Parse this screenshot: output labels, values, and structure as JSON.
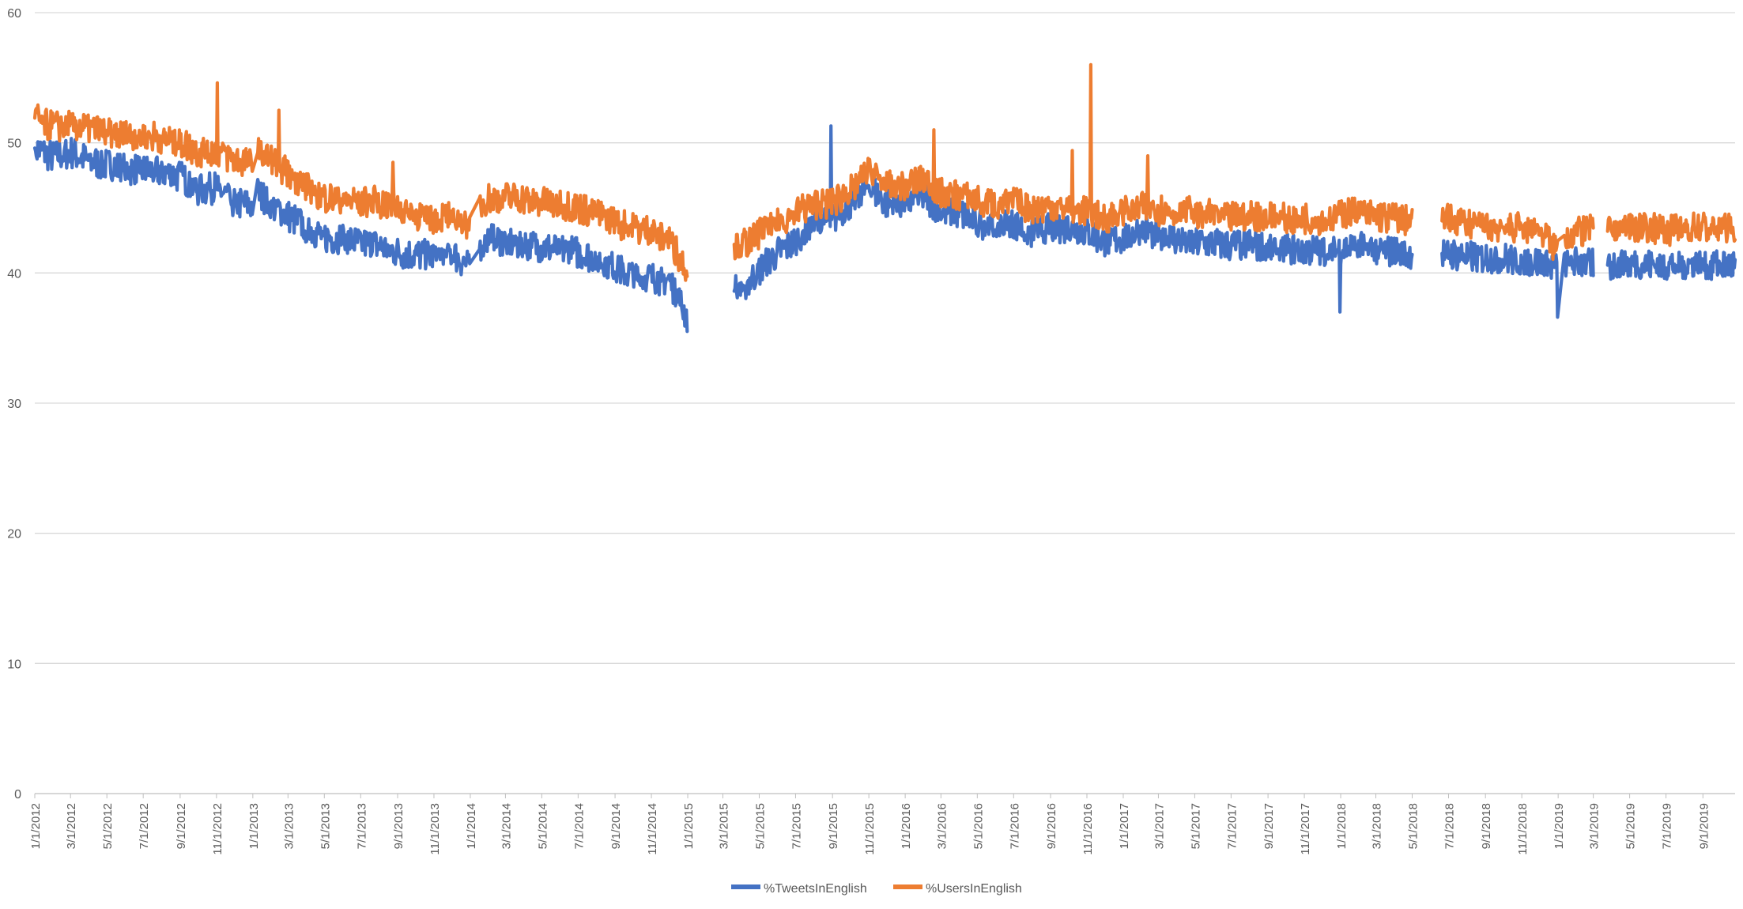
{
  "chart_data": {
    "type": "line",
    "title": "",
    "xlabel": "",
    "ylabel": "",
    "ylim": [
      0,
      60
    ],
    "yticks": [
      0,
      10,
      20,
      30,
      40,
      50,
      60
    ],
    "xlim": [
      "2012-01-01",
      "2019-10-25"
    ],
    "grid": "horizontal",
    "legend": "bottom-center",
    "x_tick_labels": [
      "1/1/2012",
      "3/1/2012",
      "5/1/2012",
      "7/1/2012",
      "9/1/2012",
      "11/1/2012",
      "1/1/2013",
      "3/1/2013",
      "5/1/2013",
      "7/1/2013",
      "9/1/2013",
      "11/1/2013",
      "1/1/2014",
      "3/1/2014",
      "5/1/2014",
      "7/1/2014",
      "9/1/2014",
      "11/1/2014",
      "1/1/2015",
      "3/1/2015",
      "5/1/2015",
      "7/1/2015",
      "9/1/2015",
      "11/1/2015",
      "1/1/2016",
      "3/1/2016",
      "5/1/2016",
      "7/1/2016",
      "9/1/2016",
      "11/1/2016",
      "1/1/2017",
      "3/1/2017",
      "5/1/2017",
      "7/1/2017",
      "9/1/2017",
      "11/1/2017",
      "1/1/2018",
      "3/1/2018",
      "5/1/2018",
      "7/1/2018",
      "9/1/2018",
      "11/1/2018",
      "1/1/2019",
      "3/1/2019",
      "5/1/2019",
      "7/1/2019",
      "9/1/2019"
    ],
    "series": [
      {
        "name": "%TweetsInEnglish",
        "color": "#4472C4",
        "points": [
          [
            "2012-01-01",
            49.6
          ],
          [
            "2012-02-01",
            48.9
          ],
          [
            "2012-03-01",
            49.3
          ],
          [
            "2012-04-01",
            48.6
          ],
          [
            "2012-05-01",
            48.3
          ],
          [
            "2012-06-01",
            48.0
          ],
          [
            "2012-07-01",
            47.9
          ],
          [
            "2012-08-01",
            47.8
          ],
          [
            "2012-09-01",
            47.4
          ],
          [
            "2012-10-01",
            46.4
          ],
          [
            "2012-11-01",
            46.6
          ],
          [
            "2012-12-01",
            45.4
          ],
          [
            "2012-12-31",
            45.2
          ],
          [
            "2013-01-08",
            46.2
          ],
          [
            "2013-02-01",
            45.2
          ],
          [
            "2013-03-01",
            44.4
          ],
          [
            "2013-04-01",
            43.5
          ],
          [
            "2013-05-01",
            42.8
          ],
          [
            "2013-06-01",
            42.6
          ],
          [
            "2013-07-01",
            42.3
          ],
          [
            "2013-08-01",
            42.1
          ],
          [
            "2013-09-01",
            41.6
          ],
          [
            "2013-10-01",
            41.4
          ],
          [
            "2013-11-01",
            41.3
          ],
          [
            "2013-12-01",
            41.5
          ],
          [
            "2013-12-31",
            40.5
          ],
          [
            "2014-01-15",
            42.0
          ],
          [
            "2014-02-01",
            42.7
          ],
          [
            "2014-03-01",
            42.4
          ],
          [
            "2014-04-01",
            42.2
          ],
          [
            "2014-05-01",
            42.0
          ],
          [
            "2014-06-01",
            41.8
          ],
          [
            "2014-07-01",
            41.6
          ],
          [
            "2014-08-01",
            41.1
          ],
          [
            "2014-09-01",
            40.4
          ],
          [
            "2014-10-01",
            39.8
          ],
          [
            "2014-11-01",
            39.6
          ],
          [
            "2014-12-01",
            39.5
          ],
          [
            "2014-12-31",
            36.6
          ],
          [
            "2015-03-20",
            38.6
          ],
          [
            "2015-04-15",
            39.4
          ],
          [
            "2015-05-01",
            40.2
          ],
          [
            "2015-06-01",
            41.6
          ],
          [
            "2015-07-01",
            42.4
          ],
          [
            "2015-08-01",
            43.6
          ],
          [
            "2015-09-01",
            44.1
          ],
          [
            "2015-10-01",
            45.4
          ],
          [
            "2015-11-01",
            46.7
          ],
          [
            "2015-12-01",
            45.3
          ],
          [
            "2016-01-01",
            45.4
          ],
          [
            "2016-02-01",
            45.9
          ],
          [
            "2016-03-01",
            44.7
          ],
          [
            "2016-04-01",
            44.6
          ],
          [
            "2016-05-01",
            43.8
          ],
          [
            "2016-06-01",
            43.6
          ],
          [
            "2016-07-01",
            43.7
          ],
          [
            "2016-08-01",
            43.1
          ],
          [
            "2016-09-01",
            43.5
          ],
          [
            "2016-10-01",
            43.5
          ],
          [
            "2016-11-01",
            43.2
          ],
          [
            "2016-12-01",
            42.4
          ],
          [
            "2017-01-01",
            42.7
          ],
          [
            "2017-02-01",
            43.4
          ],
          [
            "2017-03-01",
            42.9
          ],
          [
            "2017-04-01",
            42.6
          ],
          [
            "2017-05-01",
            42.3
          ],
          [
            "2017-06-01",
            42.3
          ],
          [
            "2017-07-01",
            42.1
          ],
          [
            "2017-08-01",
            42.2
          ],
          [
            "2017-09-01",
            42.0
          ],
          [
            "2017-10-01",
            41.9
          ],
          [
            "2017-11-01",
            41.8
          ],
          [
            "2017-12-01",
            41.7
          ],
          [
            "2018-01-01",
            41.8
          ],
          [
            "2018-02-01",
            42.1
          ],
          [
            "2018-03-01",
            41.8
          ],
          [
            "2018-04-01",
            41.6
          ],
          [
            "2018-05-01",
            41.4
          ],
          [
            "2018-06-20",
            41.5
          ],
          [
            "2018-07-01",
            41.5
          ],
          [
            "2018-08-01",
            41.3
          ],
          [
            "2018-09-01",
            41.2
          ],
          [
            "2018-10-01",
            41.1
          ],
          [
            "2018-11-01",
            41.0
          ],
          [
            "2018-12-01",
            40.8
          ],
          [
            "2018-12-31",
            40.3
          ],
          [
            "2019-01-10",
            40.7
          ],
          [
            "2019-02-01",
            40.9
          ],
          [
            "2019-03-01",
            40.7
          ],
          [
            "2019-03-25",
            40.6
          ],
          [
            "2019-04-10",
            40.6
          ],
          [
            "2019-05-01",
            40.7
          ],
          [
            "2019-06-01",
            40.6
          ],
          [
            "2019-07-01",
            40.6
          ],
          [
            "2019-08-01",
            40.7
          ],
          [
            "2019-09-01",
            40.6
          ],
          [
            "2019-10-25",
            40.6
          ]
        ]
      },
      {
        "name": "%UsersInEnglish",
        "color": "#ED7D31",
        "points": [
          [
            "2012-01-01",
            51.9
          ],
          [
            "2012-02-01",
            51.2
          ],
          [
            "2012-03-01",
            51.5
          ],
          [
            "2012-04-01",
            51.0
          ],
          [
            "2012-05-01",
            50.8
          ],
          [
            "2012-06-01",
            50.5
          ],
          [
            "2012-07-01",
            50.6
          ],
          [
            "2012-08-01",
            50.4
          ],
          [
            "2012-09-01",
            50.1
          ],
          [
            "2012-10-01",
            49.3
          ],
          [
            "2012-11-01",
            49.4
          ],
          [
            "2012-12-01",
            48.7
          ],
          [
            "2012-12-31",
            48.6
          ],
          [
            "2013-01-08",
            49.3
          ],
          [
            "2013-02-01",
            48.7
          ],
          [
            "2013-03-01",
            47.7
          ],
          [
            "2013-04-01",
            46.6
          ],
          [
            "2013-05-01",
            45.8
          ],
          [
            "2013-06-01",
            45.6
          ],
          [
            "2013-07-01",
            45.5
          ],
          [
            "2013-08-01",
            45.4
          ],
          [
            "2013-09-01",
            45.1
          ],
          [
            "2013-10-01",
            44.5
          ],
          [
            "2013-11-01",
            44.2
          ],
          [
            "2013-12-01",
            44.4
          ],
          [
            "2013-12-31",
            43.7
          ],
          [
            "2014-01-15",
            45.2
          ],
          [
            "2014-02-01",
            45.7
          ],
          [
            "2014-03-01",
            45.8
          ],
          [
            "2014-04-01",
            45.7
          ],
          [
            "2014-05-01",
            45.5
          ],
          [
            "2014-06-01",
            45.3
          ],
          [
            "2014-07-01",
            45.0
          ],
          [
            "2014-08-01",
            44.6
          ],
          [
            "2014-09-01",
            43.9
          ],
          [
            "2014-10-01",
            43.4
          ],
          [
            "2014-11-01",
            43.2
          ],
          [
            "2014-12-01",
            42.6
          ],
          [
            "2014-12-31",
            40.2
          ],
          [
            "2015-03-20",
            42.2
          ],
          [
            "2015-04-15",
            42.4
          ],
          [
            "2015-05-01",
            43.1
          ],
          [
            "2015-06-01",
            43.8
          ],
          [
            "2015-07-01",
            44.7
          ],
          [
            "2015-08-01",
            45.3
          ],
          [
            "2015-09-01",
            45.4
          ],
          [
            "2015-10-01",
            46.4
          ],
          [
            "2015-11-01",
            47.8
          ],
          [
            "2015-12-01",
            46.7
          ],
          [
            "2016-01-01",
            46.8
          ],
          [
            "2016-02-01",
            47.2
          ],
          [
            "2016-03-01",
            46.2
          ],
          [
            "2016-04-01",
            46.0
          ],
          [
            "2016-05-01",
            45.6
          ],
          [
            "2016-06-01",
            45.3
          ],
          [
            "2016-07-01",
            45.4
          ],
          [
            "2016-08-01",
            44.9
          ],
          [
            "2016-09-01",
            45.1
          ],
          [
            "2016-10-01",
            45.0
          ],
          [
            "2016-11-01",
            44.8
          ],
          [
            "2016-12-01",
            44.2
          ],
          [
            "2017-01-01",
            44.7
          ],
          [
            "2017-02-01",
            45.1
          ],
          [
            "2017-03-01",
            44.9
          ],
          [
            "2017-04-01",
            44.7
          ],
          [
            "2017-05-01",
            44.6
          ],
          [
            "2017-06-01",
            44.6
          ],
          [
            "2017-07-01",
            44.3
          ],
          [
            "2017-08-01",
            44.4
          ],
          [
            "2017-09-01",
            44.3
          ],
          [
            "2017-10-01",
            44.2
          ],
          [
            "2017-11-01",
            44.2
          ],
          [
            "2017-12-01",
            44.1
          ],
          [
            "2018-01-01",
            44.6
          ],
          [
            "2018-02-01",
            44.7
          ],
          [
            "2018-03-01",
            44.4
          ],
          [
            "2018-04-01",
            44.2
          ],
          [
            "2018-05-01",
            43.9
          ],
          [
            "2018-06-20",
            44.0
          ],
          [
            "2018-07-01",
            44.3
          ],
          [
            "2018-08-01",
            43.8
          ],
          [
            "2018-09-01",
            43.6
          ],
          [
            "2018-10-01",
            43.6
          ],
          [
            "2018-11-01",
            43.5
          ],
          [
            "2018-12-01",
            43.4
          ],
          [
            "2018-12-31",
            41.8
          ],
          [
            "2019-01-10",
            42.7
          ],
          [
            "2019-02-01",
            43.2
          ],
          [
            "2019-03-01",
            43.4
          ],
          [
            "2019-03-25",
            43.2
          ],
          [
            "2019-04-10",
            43.5
          ],
          [
            "2019-05-01",
            43.6
          ],
          [
            "2019-06-01",
            43.5
          ],
          [
            "2019-07-01",
            43.4
          ],
          [
            "2019-08-01",
            43.4
          ],
          [
            "2019-09-01",
            43.5
          ],
          [
            "2019-10-25",
            43.5
          ]
        ]
      }
    ],
    "spikes": [
      {
        "series": "%UsersInEnglish",
        "x": "2012-11-02",
        "y": 54.6
      },
      {
        "series": "%UsersInEnglish",
        "x": "2013-02-14",
        "y": 52.5
      },
      {
        "series": "%UsersInEnglish",
        "x": "2013-08-24",
        "y": 48.5
      },
      {
        "series": "%UsersInEnglish",
        "x": "2015-10-31",
        "y": 48.8
      },
      {
        "series": "%UsersInEnglish",
        "x": "2016-02-18",
        "y": 51.0
      },
      {
        "series": "%UsersInEnglish",
        "x": "2016-10-08",
        "y": 49.4
      },
      {
        "series": "%UsersInEnglish",
        "x": "2016-11-08",
        "y": 56.0
      },
      {
        "series": "%UsersInEnglish",
        "x": "2017-02-11",
        "y": 49.0
      },
      {
        "series": "%TweetsInEnglish",
        "x": "2015-08-30",
        "y": 51.3
      },
      {
        "series": "%TweetsInEnglish",
        "x": "2017-12-31",
        "y": 37.0
      },
      {
        "series": "%TweetsInEnglish",
        "x": "2018-12-31",
        "y": 36.6
      }
    ]
  }
}
